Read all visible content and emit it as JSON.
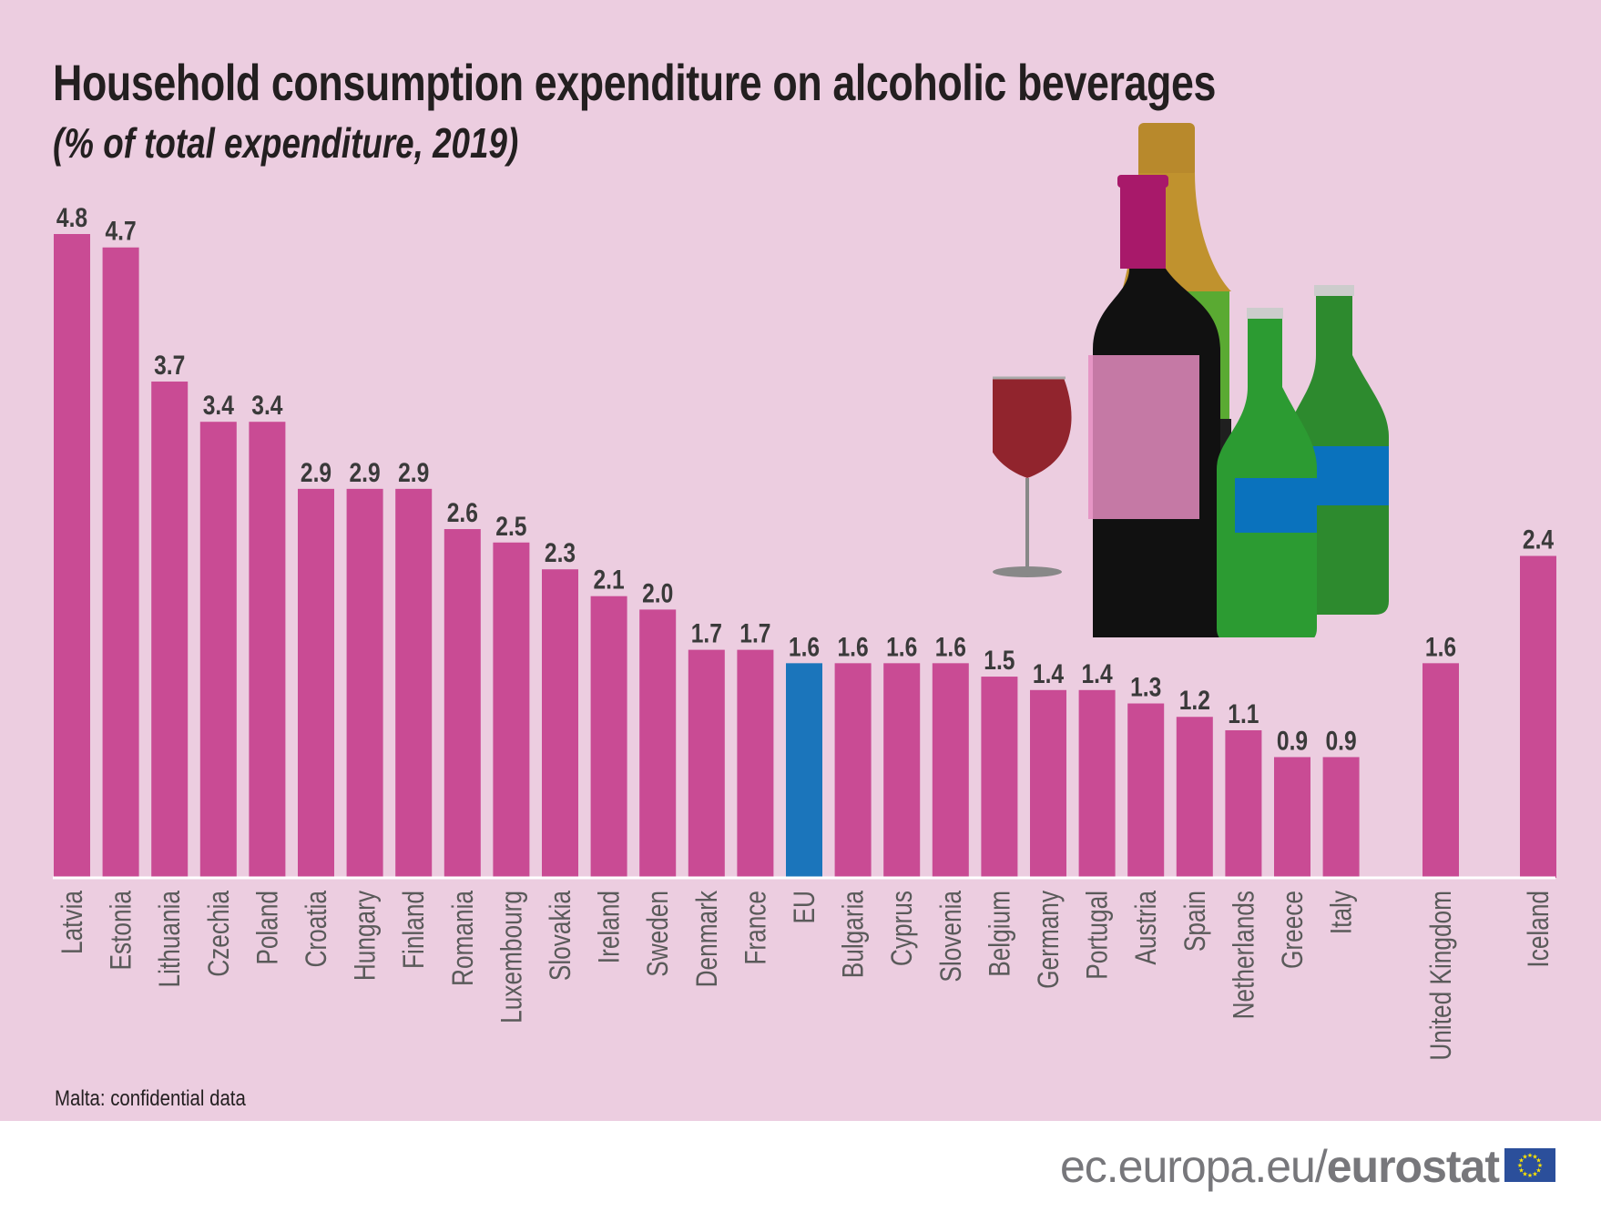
{
  "title": "Household consumption expenditure on alcoholic beverages",
  "subtitle": "(% of total expenditure, 2019)",
  "footnote": "Malta: confidential data",
  "logo": {
    "prefix": "ec.europa.eu/",
    "brand": "eurostat"
  },
  "colors": {
    "background": "#eccde0",
    "bar": "#c94b94",
    "eu_bar": "#1b75bb",
    "text": "#231f20",
    "label": "#5a5a5a"
  },
  "chart_data": {
    "type": "bar",
    "title": "Household consumption expenditure on alcoholic beverages",
    "subtitle": "(% of total expenditure, 2019)",
    "categories": [
      "Latvia",
      "Estonia",
      "Lithuania",
      "Czechia",
      "Poland",
      "Croatia",
      "Hungary",
      "Finland",
      "Romania",
      "Luxembourg",
      "Slovakia",
      "Ireland",
      "Sweden",
      "Denmark",
      "France",
      "EU",
      "Bulgaria",
      "Cyprus",
      "Slovenia",
      "Belgium",
      "Germany",
      "Portugal",
      "Austria",
      "Spain",
      "Netherlands",
      "Greece",
      "Italy",
      "United Kingdom",
      "Iceland"
    ],
    "values": [
      4.8,
      4.7,
      3.7,
      3.4,
      3.4,
      2.9,
      2.9,
      2.9,
      2.6,
      2.5,
      2.3,
      2.1,
      2.0,
      1.7,
      1.7,
      1.6,
      1.6,
      1.6,
      1.6,
      1.5,
      1.4,
      1.4,
      1.3,
      1.2,
      1.1,
      0.9,
      0.9,
      1.6,
      2.4
    ],
    "value_labels": [
      "4.8",
      "4.7",
      "3.7",
      "3.4",
      "3.4",
      "2.9",
      "2.9",
      "2.9",
      "2.6",
      "2.5",
      "2.3",
      "2.1",
      "2.0",
      "1.7",
      "1.7",
      "1.6",
      "1.6",
      "1.6",
      "1.6",
      "1.5",
      "1.4",
      "1.4",
      "1.3",
      "1.2",
      "1.1",
      "0.9",
      "0.9",
      "1.6",
      "2.4"
    ],
    "highlight": "EU",
    "ylim": [
      0,
      4.8
    ],
    "grid": false,
    "xlabel": "",
    "ylabel": ""
  }
}
